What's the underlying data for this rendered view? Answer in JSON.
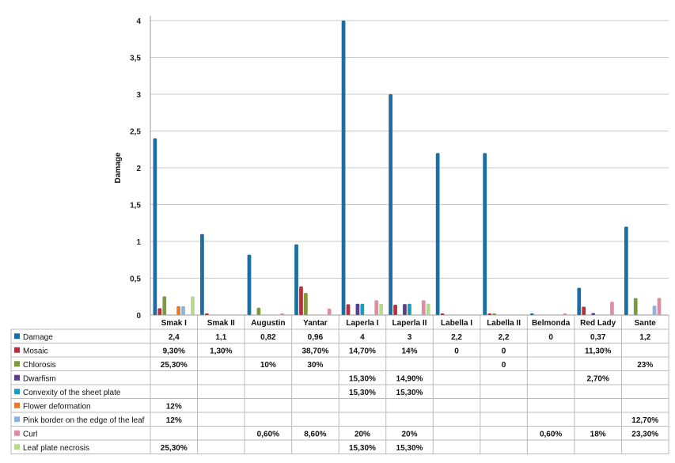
{
  "chart_data": {
    "type": "bar",
    "ylabel": "Damage",
    "ylim": [
      0,
      4
    ],
    "yticks": [
      "0",
      "0,5",
      "1",
      "1,5",
      "2",
      "2,5",
      "3",
      "3,5",
      "4"
    ],
    "categories": [
      "Smak I",
      "Smak II",
      "Augustin",
      "Yantar",
      "Laperla I",
      "Laperla II",
      "Labella I",
      "Labella II",
      "Belmonda",
      "Red Lady",
      "Sante"
    ],
    "grid": true,
    "legend": "data-table",
    "series": [
      {
        "name": "Damage",
        "color": "#1a6ea4",
        "values": [
          2.4,
          1.1,
          0.82,
          0.96,
          4,
          3,
          2.2,
          2.2,
          0,
          0.37,
          1.2
        ],
        "labels": [
          "2,4",
          "1,1",
          "0,82",
          "0,96",
          "4",
          "3",
          "2,2",
          "2,2",
          "0",
          "0,37",
          "1,2"
        ]
      },
      {
        "name": "Mosaic",
        "color": "#b8303c",
        "values": [
          0.093,
          0.013,
          null,
          0.387,
          0.147,
          0.14,
          0,
          0,
          null,
          0.113,
          null
        ],
        "labels": [
          "9,30%",
          "1,30%",
          "",
          "38,70%",
          "14,70%",
          "14%",
          "0",
          "0",
          "",
          "11,30%",
          ""
        ]
      },
      {
        "name": "Chlorosis",
        "color": "#7d9b3a",
        "values": [
          0.253,
          null,
          0.1,
          0.3,
          null,
          null,
          null,
          0,
          null,
          null,
          0.23
        ],
        "labels": [
          "25,30%",
          "",
          "10%",
          "30%",
          "",
          "",
          "",
          "0",
          "",
          "",
          "23%"
        ]
      },
      {
        "name": "Dwarfism",
        "color": "#5a3f8e",
        "values": [
          null,
          null,
          null,
          null,
          0.153,
          0.149,
          null,
          null,
          null,
          0.027,
          null
        ],
        "labels": [
          "",
          "",
          "",
          "",
          "15,30%",
          "14,90%",
          "",
          "",
          "",
          "2,70%",
          ""
        ]
      },
      {
        "name": "Convexity of the sheet plate",
        "color": "#1f9ab8",
        "values": [
          null,
          null,
          null,
          null,
          0.153,
          0.153,
          null,
          null,
          null,
          null,
          null
        ],
        "labels": [
          "",
          "",
          "",
          "",
          "15,30%",
          "15,30%",
          "",
          "",
          "",
          "",
          ""
        ]
      },
      {
        "name": "Flower deformation",
        "color": "#e97a2a",
        "values": [
          0.12,
          null,
          null,
          null,
          null,
          null,
          null,
          null,
          null,
          null,
          null
        ],
        "labels": [
          "12%",
          "",
          "",
          "",
          "",
          "",
          "",
          "",
          "",
          "",
          ""
        ]
      },
      {
        "name": "Pink border on the edge of the leaf",
        "color": "#8fb3de",
        "values": [
          0.12,
          null,
          null,
          null,
          null,
          null,
          null,
          null,
          null,
          null,
          0.127
        ],
        "labels": [
          "12%",
          "",
          "",
          "",
          "",
          "",
          "",
          "",
          "",
          "",
          "12,70%"
        ]
      },
      {
        "name": "Curl",
        "color": "#de8ea0",
        "values": [
          null,
          null,
          0.006,
          0.086,
          0.2,
          0.2,
          null,
          null,
          0.006,
          0.18,
          0.233
        ],
        "labels": [
          "",
          "",
          "0,60%",
          "8,60%",
          "20%",
          "20%",
          "",
          "",
          "0,60%",
          "18%",
          "23,30%"
        ]
      },
      {
        "name": "Leaf plate necrosis",
        "color": "#b6d98c",
        "values": [
          0.253,
          null,
          null,
          null,
          0.153,
          0.153,
          null,
          null,
          null,
          null,
          null
        ],
        "labels": [
          "25,30%",
          "",
          "",
          "",
          "15,30%",
          "15,30%",
          "",
          "",
          "",
          "",
          ""
        ]
      }
    ]
  }
}
